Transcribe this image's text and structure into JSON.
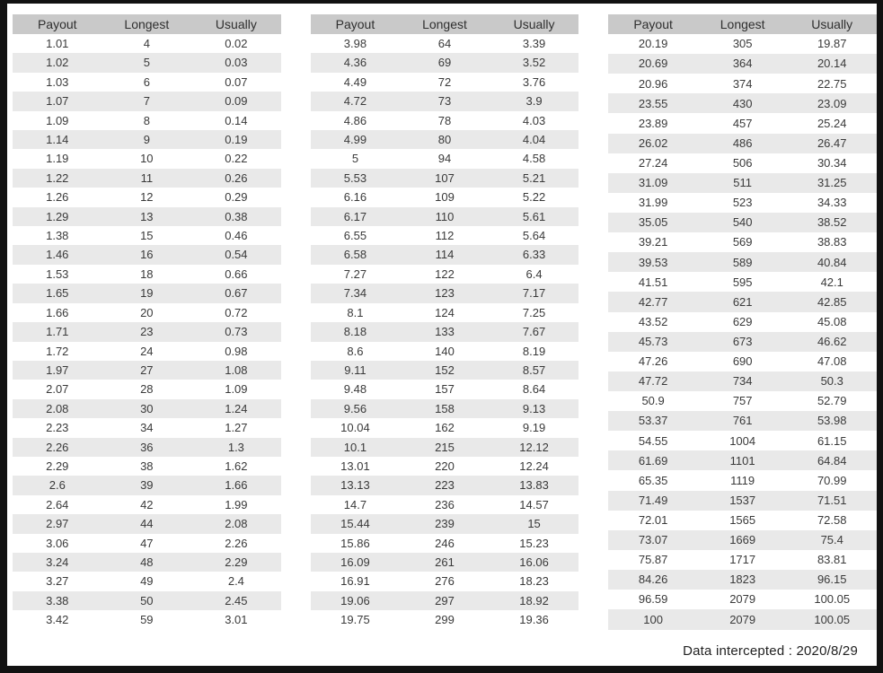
{
  "chart_data": {
    "type": "table",
    "columns": [
      "Payout",
      "Longest",
      "Usually"
    ],
    "tables": [
      {
        "rows": [
          [
            "1.01",
            "4",
            "0.02"
          ],
          [
            "1.02",
            "5",
            "0.03"
          ],
          [
            "1.03",
            "6",
            "0.07"
          ],
          [
            "1.07",
            "7",
            "0.09"
          ],
          [
            "1.09",
            "8",
            "0.14"
          ],
          [
            "1.14",
            "9",
            "0.19"
          ],
          [
            "1.19",
            "10",
            "0.22"
          ],
          [
            "1.22",
            "11",
            "0.26"
          ],
          [
            "1.26",
            "12",
            "0.29"
          ],
          [
            "1.29",
            "13",
            "0.38"
          ],
          [
            "1.38",
            "15",
            "0.46"
          ],
          [
            "1.46",
            "16",
            "0.54"
          ],
          [
            "1.53",
            "18",
            "0.66"
          ],
          [
            "1.65",
            "19",
            "0.67"
          ],
          [
            "1.66",
            "20",
            "0.72"
          ],
          [
            "1.71",
            "23",
            "0.73"
          ],
          [
            "1.72",
            "24",
            "0.98"
          ],
          [
            "1.97",
            "27",
            "1.08"
          ],
          [
            "2.07",
            "28",
            "1.09"
          ],
          [
            "2.08",
            "30",
            "1.24"
          ],
          [
            "2.23",
            "34",
            "1.27"
          ],
          [
            "2.26",
            "36",
            "1.3"
          ],
          [
            "2.29",
            "38",
            "1.62"
          ],
          [
            "2.6",
            "39",
            "1.66"
          ],
          [
            "2.64",
            "42",
            "1.99"
          ],
          [
            "2.97",
            "44",
            "2.08"
          ],
          [
            "3.06",
            "47",
            "2.26"
          ],
          [
            "3.24",
            "48",
            "2.29"
          ],
          [
            "3.27",
            "49",
            "2.4"
          ],
          [
            "3.38",
            "50",
            "2.45"
          ],
          [
            "3.42",
            "59",
            "3.01"
          ]
        ]
      },
      {
        "rows": [
          [
            "3.98",
            "64",
            "3.39"
          ],
          [
            "4.36",
            "69",
            "3.52"
          ],
          [
            "4.49",
            "72",
            "3.76"
          ],
          [
            "4.72",
            "73",
            "3.9"
          ],
          [
            "4.86",
            "78",
            "4.03"
          ],
          [
            "4.99",
            "80",
            "4.04"
          ],
          [
            "5",
            "94",
            "4.58"
          ],
          [
            "5.53",
            "107",
            "5.21"
          ],
          [
            "6.16",
            "109",
            "5.22"
          ],
          [
            "6.17",
            "110",
            "5.61"
          ],
          [
            "6.55",
            "112",
            "5.64"
          ],
          [
            "6.58",
            "114",
            "6.33"
          ],
          [
            "7.27",
            "122",
            "6.4"
          ],
          [
            "7.34",
            "123",
            "7.17"
          ],
          [
            "8.1",
            "124",
            "7.25"
          ],
          [
            "8.18",
            "133",
            "7.67"
          ],
          [
            "8.6",
            "140",
            "8.19"
          ],
          [
            "9.11",
            "152",
            "8.57"
          ],
          [
            "9.48",
            "157",
            "8.64"
          ],
          [
            "9.56",
            "158",
            "9.13"
          ],
          [
            "10.04",
            "162",
            "9.19"
          ],
          [
            "10.1",
            "215",
            "12.12"
          ],
          [
            "13.01",
            "220",
            "12.24"
          ],
          [
            "13.13",
            "223",
            "13.83"
          ],
          [
            "14.7",
            "236",
            "14.57"
          ],
          [
            "15.44",
            "239",
            "15"
          ],
          [
            "15.86",
            "246",
            "15.23"
          ],
          [
            "16.09",
            "261",
            "16.06"
          ],
          [
            "16.91",
            "276",
            "18.23"
          ],
          [
            "19.06",
            "297",
            "18.92"
          ],
          [
            "19.75",
            "299",
            "19.36"
          ]
        ]
      },
      {
        "rows": [
          [
            "20.19",
            "305",
            "19.87"
          ],
          [
            "20.69",
            "364",
            "20.14"
          ],
          [
            "20.96",
            "374",
            "22.75"
          ],
          [
            "23.55",
            "430",
            "23.09"
          ],
          [
            "23.89",
            "457",
            "25.24"
          ],
          [
            "26.02",
            "486",
            "26.47"
          ],
          [
            "27.24",
            "506",
            "30.34"
          ],
          [
            "31.09",
            "511",
            "31.25"
          ],
          [
            "31.99",
            "523",
            "34.33"
          ],
          [
            "35.05",
            "540",
            "38.52"
          ],
          [
            "39.21",
            "569",
            "38.83"
          ],
          [
            "39.53",
            "589",
            "40.84"
          ],
          [
            "41.51",
            "595",
            "42.1"
          ],
          [
            "42.77",
            "621",
            "42.85"
          ],
          [
            "43.52",
            "629",
            "45.08"
          ],
          [
            "45.73",
            "673",
            "46.62"
          ],
          [
            "47.26",
            "690",
            "47.08"
          ],
          [
            "47.72",
            "734",
            "50.3"
          ],
          [
            "50.9",
            "757",
            "52.79"
          ],
          [
            "53.37",
            "761",
            "53.98"
          ],
          [
            "54.55",
            "1004",
            "61.15"
          ],
          [
            "61.69",
            "1101",
            "64.84"
          ],
          [
            "65.35",
            "1119",
            "70.99"
          ],
          [
            "71.49",
            "1537",
            "71.51"
          ],
          [
            "72.01",
            "1565",
            "72.58"
          ],
          [
            "73.07",
            "1669",
            "75.4"
          ],
          [
            "75.87",
            "1717",
            "83.81"
          ],
          [
            "84.26",
            "1823",
            "96.15"
          ],
          [
            "96.59",
            "2079",
            "100.05"
          ],
          [
            "100",
            "2079",
            "100.05"
          ]
        ]
      }
    ]
  },
  "footer": {
    "label": "Data intercepted : 2020/8/29"
  },
  "colors": {
    "frame": "#121212",
    "background": "#ffffff",
    "header_bg": "#c9c9c9",
    "row_stripe_bg": "#e9e9e9",
    "text": "#3a3a3a"
  }
}
